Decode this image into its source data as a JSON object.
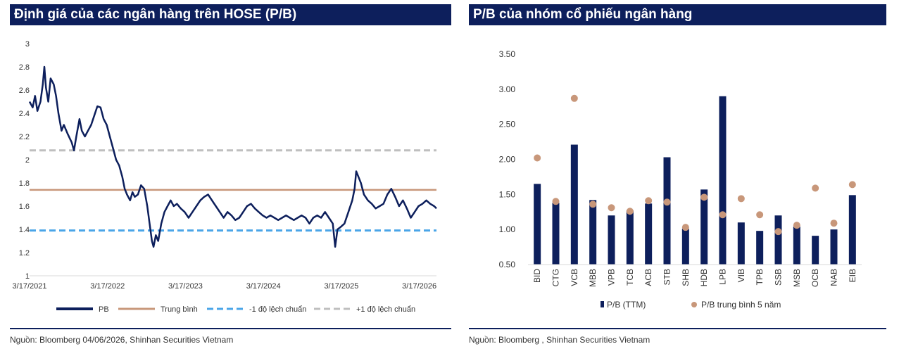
{
  "colors": {
    "header_bg": "#0d1f5c",
    "pb_line": "#0d1f5c",
    "mean_line": "#c8977a",
    "minus_sd_line": "#4aa5e8",
    "plus_sd_line": "#bfbfbf",
    "bar": "#0d1f5c",
    "dot": "#c8977a"
  },
  "left_panel": {
    "title": "Định giá của các ngân hàng trên HOSE (P/B)",
    "source": "Nguồn:  Bloomberg 04/06/2026,  Shinhan Securities Vietnam"
  },
  "right_panel": {
    "title": "P/B của nhóm cổ phiếu ngân hàng",
    "source": "Nguồn: Bloomberg , Shinhan Securities Vietnam"
  },
  "chart_data": [
    {
      "type": "line",
      "title": "Định giá của các ngân hàng trên HOSE (P/B)",
      "ylim": [
        1,
        3
      ],
      "y_ticks": [
        "3",
        "2.8",
        "2.6",
        "2.4",
        "2.2",
        "2",
        "1.8",
        "1.6",
        "1.4",
        "1.2",
        "1"
      ],
      "x_ticks": [
        "3/17/2021",
        "3/17/2022",
        "3/17/2023",
        "3/17/2024",
        "3/17/2025",
        "3/17/2026"
      ],
      "x_range_years": [
        2021.21,
        2026.43
      ],
      "grid": false,
      "legend_position": "bottom",
      "series": [
        {
          "name": "PB",
          "style": "solid",
          "points": [
            [
              2021.21,
              2.5
            ],
            [
              2021.25,
              2.45
            ],
            [
              2021.28,
              2.55
            ],
            [
              2021.31,
              2.42
            ],
            [
              2021.35,
              2.5
            ],
            [
              2021.38,
              2.65
            ],
            [
              2021.4,
              2.8
            ],
            [
              2021.42,
              2.62
            ],
            [
              2021.45,
              2.5
            ],
            [
              2021.48,
              2.7
            ],
            [
              2021.52,
              2.65
            ],
            [
              2021.55,
              2.55
            ],
            [
              2021.58,
              2.4
            ],
            [
              2021.62,
              2.25
            ],
            [
              2021.65,
              2.3
            ],
            [
              2021.7,
              2.22
            ],
            [
              2021.75,
              2.15
            ],
            [
              2021.78,
              2.08
            ],
            [
              2021.81,
              2.2
            ],
            [
              2021.85,
              2.35
            ],
            [
              2021.88,
              2.25
            ],
            [
              2021.92,
              2.2
            ],
            [
              2021.96,
              2.25
            ],
            [
              2022.0,
              2.3
            ],
            [
              2022.04,
              2.38
            ],
            [
              2022.08,
              2.46
            ],
            [
              2022.12,
              2.45
            ],
            [
              2022.16,
              2.35
            ],
            [
              2022.2,
              2.3
            ],
            [
              2022.24,
              2.2
            ],
            [
              2022.28,
              2.1
            ],
            [
              2022.32,
              2.0
            ],
            [
              2022.36,
              1.95
            ],
            [
              2022.4,
              1.85
            ],
            [
              2022.43,
              1.75
            ],
            [
              2022.46,
              1.7
            ],
            [
              2022.5,
              1.65
            ],
            [
              2022.53,
              1.72
            ],
            [
              2022.56,
              1.68
            ],
            [
              2022.6,
              1.7
            ],
            [
              2022.64,
              1.78
            ],
            [
              2022.68,
              1.75
            ],
            [
              2022.72,
              1.6
            ],
            [
              2022.75,
              1.45
            ],
            [
              2022.78,
              1.3
            ],
            [
              2022.8,
              1.25
            ],
            [
              2022.83,
              1.35
            ],
            [
              2022.86,
              1.3
            ],
            [
              2022.9,
              1.45
            ],
            [
              2022.94,
              1.55
            ],
            [
              2022.98,
              1.6
            ],
            [
              2023.02,
              1.65
            ],
            [
              2023.06,
              1.6
            ],
            [
              2023.1,
              1.62
            ],
            [
              2023.15,
              1.58
            ],
            [
              2023.2,
              1.55
            ],
            [
              2023.25,
              1.5
            ],
            [
              2023.3,
              1.55
            ],
            [
              2023.35,
              1.6
            ],
            [
              2023.4,
              1.65
            ],
            [
              2023.45,
              1.68
            ],
            [
              2023.5,
              1.7
            ],
            [
              2023.55,
              1.65
            ],
            [
              2023.6,
              1.6
            ],
            [
              2023.65,
              1.55
            ],
            [
              2023.7,
              1.5
            ],
            [
              2023.75,
              1.55
            ],
            [
              2023.8,
              1.52
            ],
            [
              2023.85,
              1.48
            ],
            [
              2023.9,
              1.5
            ],
            [
              2023.95,
              1.55
            ],
            [
              2024.0,
              1.6
            ],
            [
              2024.05,
              1.62
            ],
            [
              2024.1,
              1.58
            ],
            [
              2024.15,
              1.55
            ],
            [
              2024.2,
              1.52
            ],
            [
              2024.25,
              1.5
            ],
            [
              2024.3,
              1.52
            ],
            [
              2024.35,
              1.5
            ],
            [
              2024.4,
              1.48
            ],
            [
              2024.45,
              1.5
            ],
            [
              2024.5,
              1.52
            ],
            [
              2024.55,
              1.5
            ],
            [
              2024.6,
              1.48
            ],
            [
              2024.65,
              1.5
            ],
            [
              2024.7,
              1.52
            ],
            [
              2024.75,
              1.5
            ],
            [
              2024.8,
              1.45
            ],
            [
              2024.85,
              1.5
            ],
            [
              2024.9,
              1.52
            ],
            [
              2024.95,
              1.5
            ],
            [
              2025.0,
              1.55
            ],
            [
              2025.05,
              1.5
            ],
            [
              2025.1,
              1.45
            ],
            [
              2025.13,
              1.25
            ],
            [
              2025.16,
              1.4
            ],
            [
              2025.2,
              1.42
            ],
            [
              2025.25,
              1.45
            ],
            [
              2025.3,
              1.55
            ],
            [
              2025.35,
              1.65
            ],
            [
              2025.38,
              1.75
            ],
            [
              2025.4,
              1.9
            ],
            [
              2025.43,
              1.85
            ],
            [
              2025.46,
              1.8
            ],
            [
              2025.5,
              1.7
            ],
            [
              2025.55,
              1.65
            ],
            [
              2025.6,
              1.62
            ],
            [
              2025.65,
              1.58
            ],
            [
              2025.7,
              1.6
            ],
            [
              2025.75,
              1.62
            ],
            [
              2025.8,
              1.7
            ],
            [
              2025.85,
              1.75
            ],
            [
              2025.9,
              1.68
            ],
            [
              2025.95,
              1.6
            ],
            [
              2026.0,
              1.65
            ],
            [
              2026.05,
              1.58
            ],
            [
              2026.1,
              1.5
            ],
            [
              2026.15,
              1.55
            ],
            [
              2026.2,
              1.6
            ],
            [
              2026.25,
              1.62
            ],
            [
              2026.3,
              1.65
            ],
            [
              2026.35,
              1.62
            ],
            [
              2026.4,
              1.6
            ],
            [
              2026.43,
              1.58
            ]
          ]
        },
        {
          "name": "Trung bình",
          "style": "solid",
          "value": 1.74
        },
        {
          "name": "-1 độ lệch chuẩn",
          "style": "dashed",
          "value": 1.39
        },
        {
          "name": "+1 độ lệch chuẩn",
          "style": "dashed",
          "value": 2.08
        }
      ]
    },
    {
      "type": "bar",
      "title": "P/B của nhóm cổ phiếu ngân hàng",
      "ylim": [
        0.5,
        3.5
      ],
      "y_ticks": [
        "3.50",
        "3.00",
        "2.50",
        "2.00",
        "1.50",
        "1.00",
        "0.50"
      ],
      "grid": false,
      "legend_position": "bottom",
      "categories": [
        "BID",
        "CTG",
        "VCB",
        "MBB",
        "VPB",
        "TCB",
        "ACB",
        "STB",
        "SHB",
        "HDB",
        "LPB",
        "VIB",
        "TPB",
        "SSB",
        "MSB",
        "OCB",
        "NAB",
        "EIB"
      ],
      "series": [
        {
          "name": "P/B (TTM)",
          "mark": "bar",
          "values": [
            1.65,
            1.38,
            2.21,
            1.42,
            1.2,
            1.27,
            1.37,
            2.03,
            1.01,
            1.57,
            2.9,
            1.1,
            0.98,
            1.2,
            1.04,
            0.91,
            1.0,
            1.49
          ]
        },
        {
          "name": "P/B trung bình 5 năm",
          "mark": "dot",
          "values": [
            2.02,
            1.4,
            2.87,
            1.36,
            1.31,
            1.26,
            1.41,
            1.39,
            1.03,
            1.46,
            1.21,
            1.44,
            1.21,
            0.97,
            1.06,
            1.59,
            1.09,
            1.64
          ]
        }
      ]
    }
  ]
}
